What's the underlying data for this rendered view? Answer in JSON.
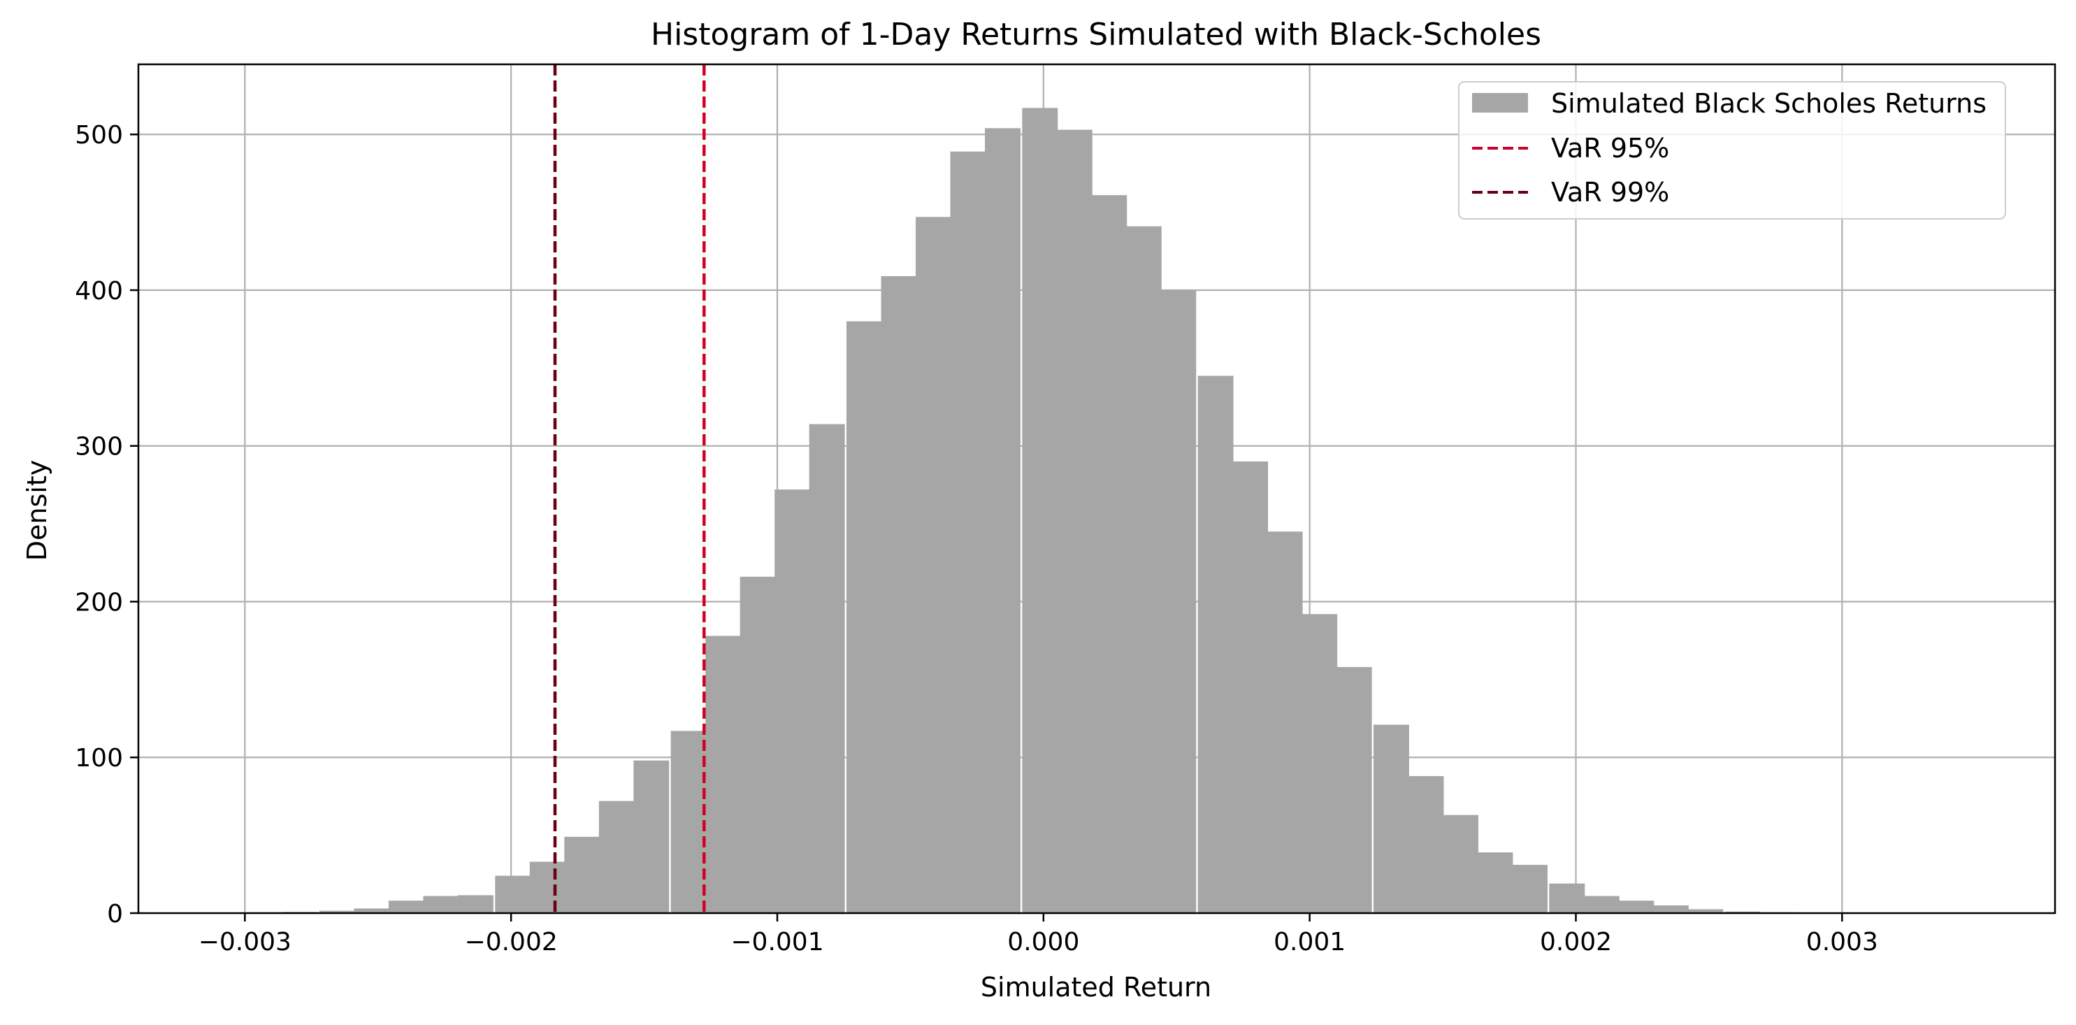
{
  "chart_data": {
    "type": "bar",
    "title": "Histogram of 1-Day Returns Simulated with Black-Scholes",
    "xlabel": "Simulated Return",
    "ylabel": "Density",
    "xlim": [
      -0.0034,
      0.0038
    ],
    "ylim": [
      0,
      545
    ],
    "grid": true,
    "legend_placement": "top-right",
    "xticks": [
      -0.003,
      -0.002,
      -0.001,
      0.0,
      0.001,
      0.002,
      0.003
    ],
    "xtick_labels": [
      "−0.003",
      "−0.002",
      "−0.001",
      "0.000",
      "0.001",
      "0.002",
      "0.003"
    ],
    "yticks": [
      0,
      100,
      200,
      300,
      400,
      500
    ],
    "ytick_labels": [
      "0",
      "100",
      "200",
      "300",
      "400",
      "500"
    ],
    "bin_width": 0.000132,
    "series": [
      {
        "name": "Simulated Black Scholes Returns",
        "color": "#a6a6a6",
        "bin_starts": [
          -0.00325,
          -0.00312,
          -0.00299,
          -0.00286,
          -0.00272,
          -0.00259,
          -0.00246,
          -0.00233,
          -0.0022,
          -0.00206,
          -0.00193,
          -0.0018,
          -0.00167,
          -0.00154,
          -0.0014,
          -0.00127,
          -0.00114,
          -0.00101,
          -0.00088,
          -0.00074,
          -0.00061,
          -0.00048,
          -0.00035,
          -0.00022,
          -8e-05,
          5e-05,
          0.00018,
          0.00031,
          0.00044,
          0.00058,
          0.00071,
          0.00084,
          0.00097,
          0.0011,
          0.00124,
          0.00137,
          0.0015,
          0.00163,
          0.00176,
          0.0019,
          0.00203,
          0.00216,
          0.00229,
          0.00242,
          0.00256,
          0.00269,
          0.00282,
          0.00295,
          0.00308
        ],
        "values": [
          0.2,
          0.3,
          0.5,
          0.8,
          1.5,
          3,
          8,
          11,
          11.5,
          24,
          33,
          49,
          72,
          98,
          117,
          178,
          216,
          272,
          314,
          380,
          409,
          447,
          489,
          504,
          517,
          503,
          461,
          441,
          400,
          345,
          290,
          245,
          192,
          158,
          121,
          88,
          63,
          39,
          31,
          19,
          11,
          8,
          5,
          2.5,
          1,
          0.5,
          0.4,
          0.2,
          0.2
        ]
      }
    ],
    "vlines": [
      {
        "name": "VaR 95%",
        "x": -0.001275,
        "color": "#d0002c",
        "style": "dashed"
      },
      {
        "name": "VaR 99%",
        "x": -0.001835,
        "color": "#6a0012",
        "style": "dashed"
      }
    ]
  }
}
